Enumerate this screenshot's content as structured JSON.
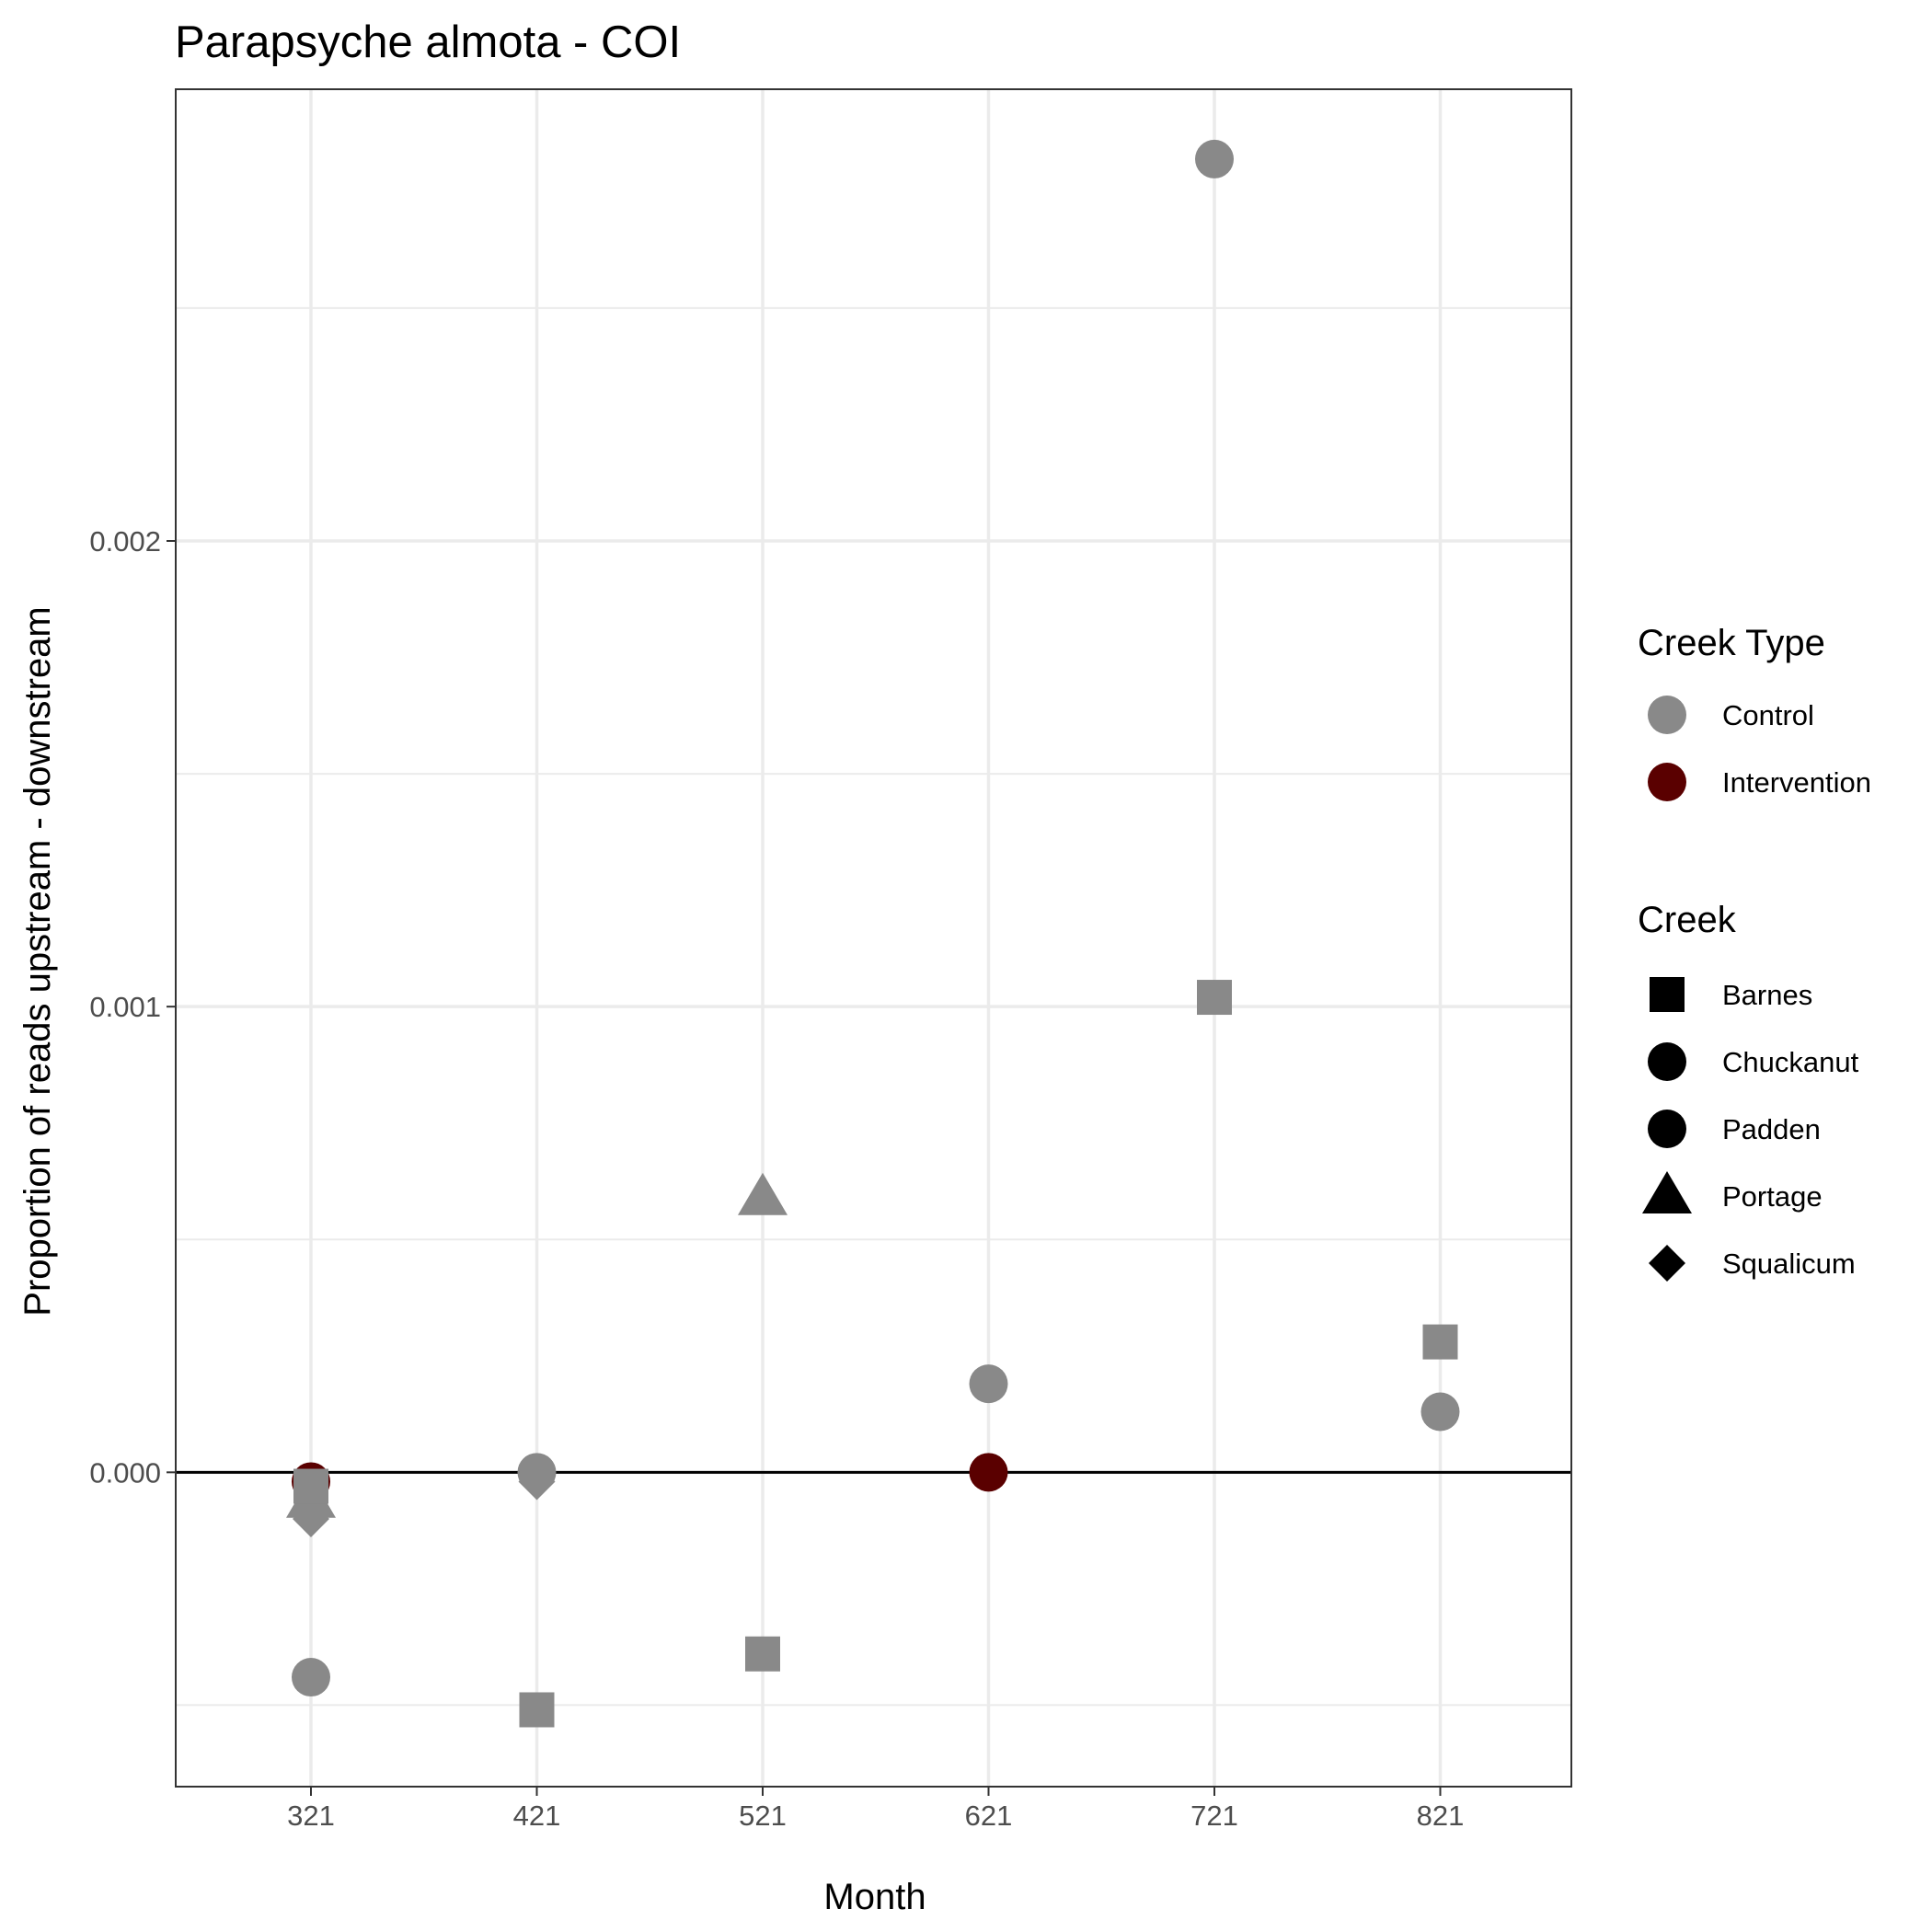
{
  "chart_data": {
    "type": "scatter",
    "title": "Parapsyche almota - COI",
    "xlabel": "Month",
    "ylabel": "Proportion of reads upstream - downstream",
    "x_categories": [
      "321",
      "421",
      "521",
      "621",
      "721",
      "821"
    ],
    "ylim": [
      -0.000675,
      0.00297
    ],
    "y_ticks": [
      {
        "value": 0.0,
        "label": "0.000"
      },
      {
        "value": 0.001,
        "label": "0.001"
      },
      {
        "value": 0.002,
        "label": "0.002"
      }
    ],
    "y_minor_ticks": [
      -0.0005,
      0.0005,
      0.0015,
      0.0025
    ],
    "reference_line_y": 0,
    "grid": true,
    "legend_placement": "right",
    "colors": {
      "Control": "#898989",
      "Intervention": "#5a0000"
    },
    "points": [
      {
        "month": "321",
        "value": -2e-05,
        "creek_type": "Intervention",
        "creek": "Chuckanut"
      },
      {
        "month": "321",
        "value": -6e-05,
        "creek_type": "Control",
        "creek": "Portage"
      },
      {
        "month": "321",
        "value": -0.0001,
        "creek_type": "Control",
        "creek": "Squalicum"
      },
      {
        "month": "321",
        "value": -3e-05,
        "creek_type": "Control",
        "creek": "Barnes"
      },
      {
        "month": "321",
        "value": -0.00044,
        "creek_type": "Control",
        "creek": "Padden"
      },
      {
        "month": "421",
        "value": -2e-05,
        "creek_type": "Control",
        "creek": "Squalicum"
      },
      {
        "month": "421",
        "value": 0.0,
        "creek_type": "Control",
        "creek": "Padden"
      },
      {
        "month": "421",
        "value": -0.00051,
        "creek_type": "Control",
        "creek": "Barnes"
      },
      {
        "month": "521",
        "value": 0.00059,
        "creek_type": "Control",
        "creek": "Portage"
      },
      {
        "month": "521",
        "value": -0.00039,
        "creek_type": "Control",
        "creek": "Barnes"
      },
      {
        "month": "621",
        "value": 0.00019,
        "creek_type": "Control",
        "creek": "Padden"
      },
      {
        "month": "621",
        "value": 0.0,
        "creek_type": "Intervention",
        "creek": "Chuckanut"
      },
      {
        "month": "721",
        "value": 0.00282,
        "creek_type": "Control",
        "creek": "Padden"
      },
      {
        "month": "721",
        "value": 0.00102,
        "creek_type": "Control",
        "creek": "Barnes"
      },
      {
        "month": "821",
        "value": 0.00028,
        "creek_type": "Control",
        "creek": "Barnes"
      },
      {
        "month": "821",
        "value": 0.00013,
        "creek_type": "Control",
        "creek": "Padden"
      }
    ],
    "legend": {
      "creek_type": {
        "title": "Creek Type",
        "entries": [
          {
            "label": "Control",
            "color": "#898989"
          },
          {
            "label": "Intervention",
            "color": "#5a0000"
          }
        ]
      },
      "creek": {
        "title": "Creek",
        "entries": [
          {
            "label": "Barnes",
            "shape": "square"
          },
          {
            "label": "Chuckanut",
            "shape": "circle"
          },
          {
            "label": "Padden",
            "shape": "circle"
          },
          {
            "label": "Portage",
            "shape": "triangle"
          },
          {
            "label": "Squalicum",
            "shape": "diamond"
          }
        ]
      }
    },
    "shape_map": {
      "Barnes": "square",
      "Chuckanut": "circle",
      "Padden": "circle",
      "Portage": "triangle",
      "Squalicum": "diamond"
    }
  }
}
